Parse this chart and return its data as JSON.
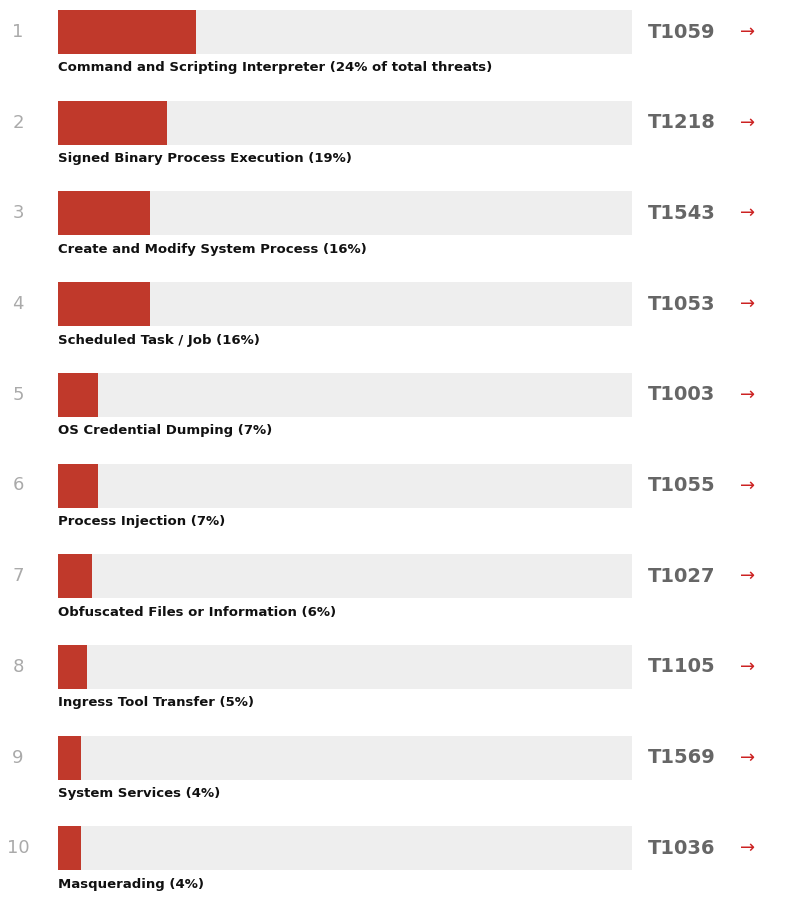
{
  "entries": [
    {
      "rank": 1,
      "value": 24,
      "code": "T1059",
      "label": "Command and Scripting Interpreter (24% of total threats)"
    },
    {
      "rank": 2,
      "value": 19,
      "code": "T1218",
      "label": "Signed Binary Process Execution (19%)"
    },
    {
      "rank": 3,
      "value": 16,
      "code": "T1543",
      "label": "Create and Modify System Process (16%)"
    },
    {
      "rank": 4,
      "value": 16,
      "code": "T1053",
      "label": "Scheduled Task / Job (16%)"
    },
    {
      "rank": 5,
      "value": 7,
      "code": "T1003",
      "label": "OS Credential Dumping (7%)"
    },
    {
      "rank": 6,
      "value": 7,
      "code": "T1055",
      "label": "Process Injection (7%)"
    },
    {
      "rank": 7,
      "value": 6,
      "code": "T1027",
      "label": "Obfuscated Files or Information (6%)"
    },
    {
      "rank": 8,
      "value": 5,
      "code": "T1105",
      "label": "Ingress Tool Transfer (5%)"
    },
    {
      "rank": 9,
      "value": 4,
      "code": "T1569",
      "label": "System Services (4%)"
    },
    {
      "rank": 10,
      "value": 4,
      "code": "T1036",
      "label": "Masquerading (4%)"
    }
  ],
  "bar_color": "#c0392b",
  "bar_bg_color": "#eeeeee",
  "rank_color": "#aaaaaa",
  "code_color": "#666666",
  "arrow_color": "#cc2222",
  "label_color": "#111111",
  "bg_color": "#ffffff",
  "bar_max_pct": 100
}
